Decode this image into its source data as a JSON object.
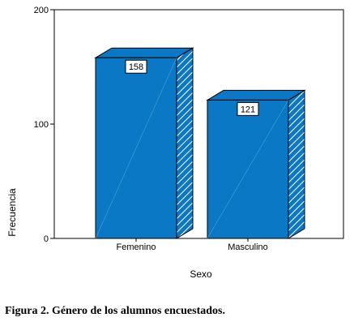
{
  "chart_data": {
    "type": "bar",
    "categories": [
      "Femenino",
      "Masculino"
    ],
    "values": [
      158,
      121
    ],
    "data_labels": [
      "158",
      "121"
    ],
    "xlabel": "Sexo",
    "ylabel": "Frecuencia",
    "ylim": [
      0,
      200
    ],
    "yticks": [
      0,
      100,
      200
    ],
    "style": "3d",
    "grid": false,
    "bar_color": "#0a78c4",
    "bar_side_color": "#0a78c4",
    "bar_top_color": "#0a78c4"
  },
  "caption": "Figura 2. Género de los alumnos encuestados."
}
